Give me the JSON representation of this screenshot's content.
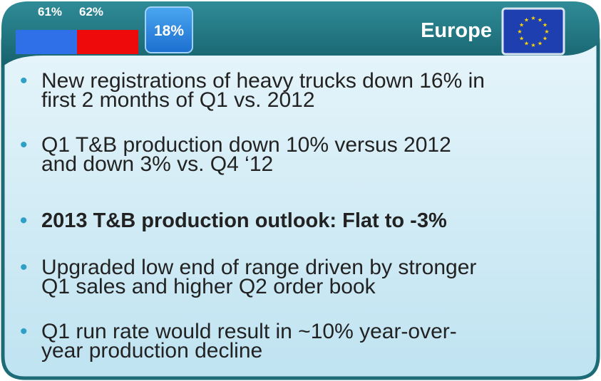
{
  "header": {
    "share_labels": [
      "61%",
      "62%"
    ],
    "badge": "18%",
    "region": "Europe"
  },
  "bullets": [
    {
      "lines": [
        "New registrations of heavy trucks down 16% in",
        "first 2 months of Q1 vs. 2012"
      ],
      "bold": false
    },
    {
      "lines": [
        "Q1 T&B production down 10% versus 2012",
        "and down 3% vs. Q4 ‘12"
      ],
      "bold": false
    },
    {
      "lines": [
        "2013 T&B production outlook: Flat to -3%"
      ],
      "bold": true
    },
    {
      "lines": [
        "Upgraded low end of range driven by stronger",
        "Q1 sales and higher Q2 order book"
      ],
      "bold": false
    },
    {
      "lines": [
        "Q1 run rate would result in ~10% year-over-",
        "year production decline"
      ],
      "bold": false
    }
  ]
}
